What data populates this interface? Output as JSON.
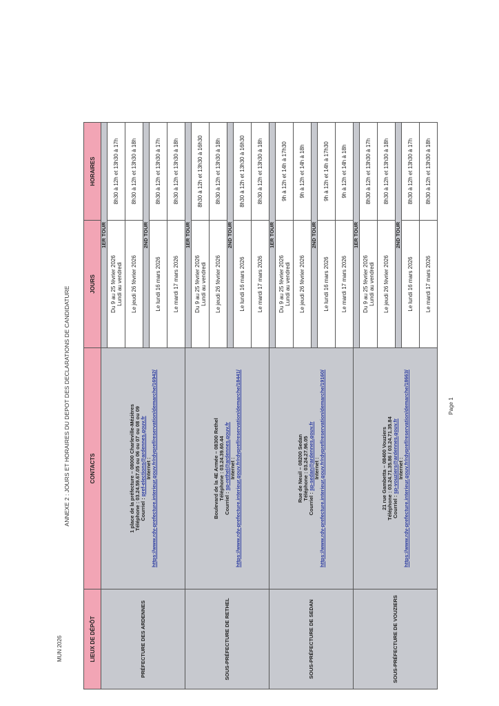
{
  "header": {
    "doc_code": "MUN 2026",
    "title": "ANNEXE 2 : JOURS ET HORAIRES DU DEPOT DES DECLARATIONS DE CANDIDATURE"
  },
  "columns": [
    "LIEUX DE DÉPÔT",
    "CONTACTS",
    "JOURS",
    "HORAIRES"
  ],
  "colors": {
    "header_bg": "#f2a5b5",
    "band_bg": "#c7c9cf"
  },
  "sites": [
    {
      "name": "PRÉFECTURE DES ARDENNES",
      "address": "1 place de la préfecture – 08000 Charleville-Mézières",
      "phone": "Téléphone : 03.24.59.67.05 ou 06 ou 07 ou 08 ou 09",
      "mail_label": "Courriel :",
      "mail": "pref-elections@ardennes.gouv.fr",
      "internet_label": "Internet :",
      "url": "https://www.rdv-prefecture.interieur.gouv.fr/rdvpref/reservation/demarche/16942/",
      "tours": [
        {
          "label": "1ER TOUR",
          "rows": [
            {
              "jours": "Du 9 au 25 février 2026",
              "jours2": "Lundi au vendredi",
              "horaires": "8h30 à 12h et 13h30 à 17h"
            },
            {
              "jours": "Le jeudi 26 février 2026",
              "jours2": "",
              "horaires": "8h30 à 12h et 13h30 à 18h"
            }
          ]
        },
        {
          "label": "2ND TOUR",
          "rows": [
            {
              "jours": "Le lundi 16 mars 2026",
              "jours2": "",
              "horaires": "8h30 à 12h et 13h30 à 17h"
            },
            {
              "jours": "Le mardi 17 mars 2026",
              "jours2": "",
              "horaires": "8h30 à 12h et 13h30 à 18h"
            }
          ]
        }
      ]
    },
    {
      "name": "SOUS-PRÉFECTURE DE RETHEL",
      "address": "Boulevard de la 4E Armée – 08300 Rethel",
      "phone": "Téléphone : 03.24.39.60.44",
      "mail_label": "Courriel :",
      "mail": "sp-rethel@ardennes.gouv.fr",
      "internet_label": "Internet :",
      "url": "https://www.rdv-prefecture.interieur.gouv.fr/rdvpref/reservation/demarche/18441/",
      "tours": [
        {
          "label": "1ER TOUR",
          "rows": [
            {
              "jours": "Du 9 au 25 février 2026",
              "jours2": "Lundi au vendredi",
              "horaires": "8h30 à 12h et 13h30 à 16h30"
            },
            {
              "jours": "Le jeudi 26 février 2026",
              "jours2": "",
              "horaires": "8h30 à 12h et 13h30 à 18h"
            }
          ]
        },
        {
          "label": "2ND TOUR",
          "rows": [
            {
              "jours": "Le lundi 16 mars 2026",
              "jours2": "",
              "horaires": "8h30 à 12h et 13h30 à 16h30"
            },
            {
              "jours": "Le mardi 17 mars 2026",
              "jours2": "",
              "horaires": "8h30 à 12h et 13h30 à 18h"
            }
          ]
        }
      ]
    },
    {
      "name": "SOUS-PRÉFECTURE DE SEDAN",
      "address": "Rue de Neuil – 08200 Sedan",
      "phone": "Téléphone : 03.24.27.96.05",
      "mail_label": "Courriel :",
      "mail": "sp-sedan@ardennes.gouv.fr",
      "internet_label": "Internet :",
      "url": "https://www.rdv-prefecture.interieur.gouv.fr/rdvpref/reservation/demarche/19160/",
      "tours": [
        {
          "label": "1ER TOUR",
          "rows": [
            {
              "jours": "Du 9 au 25 février 2026",
              "jours2": "Lundi au vendredi",
              "horaires": "9h à 12h et 14h à 17h30"
            },
            {
              "jours": "Le jeudi 26 février 2026",
              "jours2": "",
              "horaires": "9h à 12h et 14h à 18h"
            }
          ]
        },
        {
          "label": "2ND TOUR",
          "rows": [
            {
              "jours": "Le lundi 16 mars 2026",
              "jours2": "",
              "horaires": "9h à 12h et 14h à 17h30"
            },
            {
              "jours": "Le mardi 17 mars 2026",
              "jours2": "",
              "horaires": "9h à 12h et 14h à 18h"
            }
          ]
        }
      ]
    },
    {
      "name": "SOUS-PRÉFECTURE DE VOUZIERS",
      "address": "21 rue Gambetta – 08400 Vouziers",
      "phone": "Téléphone : 03.24.71.35.86 / 03.24.71.35.84",
      "mail_label": "Courriel :",
      "mail": "sp-vouziers@ardennes.gouv.fr",
      "internet_label": "Internet :",
      "url": "https://www.rdv-prefecture.interieur.gouv.fr/rdvpref/reservation/demarche/18663/",
      "tours": [
        {
          "label": "1ER TOUR",
          "rows": [
            {
              "jours": "Du 9 au 25 février 2026",
              "jours2": "Lundi au vendredi",
              "horaires": "8h30 à 12h et 13h30 à 17h"
            },
            {
              "jours": "Le jeudi 26 février 2026",
              "jours2": "",
              "horaires": "8h30 à 12h et 13h30 à 18h"
            }
          ]
        },
        {
          "label": "2ND TOUR",
          "rows": [
            {
              "jours": "Le lundi 16 mars 2026",
              "jours2": "",
              "horaires": "8h30 à 12h et 13h30 à 17h"
            },
            {
              "jours": "Le mardi 17 mars 2026",
              "jours2": "",
              "horaires": "8h30 à 12h et 13h30 à 18h"
            }
          ]
        }
      ]
    }
  ],
  "footer": {
    "page": "Page 1"
  }
}
